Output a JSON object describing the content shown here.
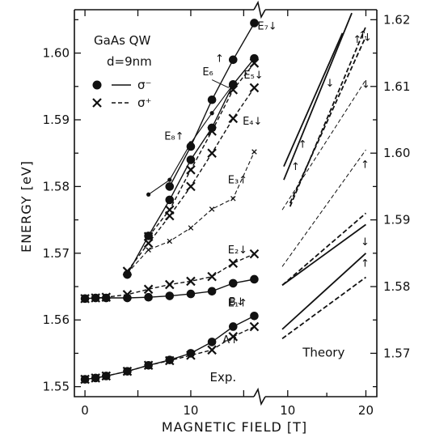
{
  "chart_data": {
    "type": "scatter",
    "ylabel": "ENERGY [eV]",
    "xlabel": "MAGNETIC FIELD [T]",
    "legend": {
      "title_line1": "GaAs QW",
      "title_line2": "d=9nm",
      "entries": [
        {
          "name": "σ⁻",
          "marker": "dot",
          "line": "solid"
        },
        {
          "name": "σ⁺",
          "marker": "cross",
          "line": "dashed"
        }
      ]
    },
    "exp_panel": {
      "label": "Exp.",
      "xlim": [
        -1,
        16.5
      ],
      "ylim": [
        1.5485,
        1.6065
      ],
      "xticks": [
        0,
        5,
        10,
        15
      ],
      "xtick_labels": [
        "0",
        "",
        "10",
        ""
      ],
      "yticks": [
        1.55,
        1.56,
        1.57,
        1.58,
        1.59,
        1.6
      ],
      "ytick_labels": [
        "1.55",
        "1.56",
        "1.57",
        "1.58",
        "1.59",
        "1.60"
      ],
      "series": [
        {
          "id": "A",
          "marker": "cross",
          "size": "large",
          "line": "dashed",
          "x": [
            0,
            1,
            2,
            4,
            6,
            8,
            10,
            12,
            14,
            16
          ],
          "y": [
            1.5511,
            1.5513,
            1.5516,
            1.5523,
            1.5532,
            1.5539,
            1.5547,
            1.5555,
            1.5575,
            1.559
          ]
        },
        {
          "id": "B",
          "marker": "dot",
          "size": "large",
          "line": "solid",
          "x": [
            0,
            1,
            2,
            4,
            6,
            8,
            10,
            12,
            14,
            16
          ],
          "y": [
            1.5511,
            1.5513,
            1.5516,
            1.5523,
            1.5532,
            1.554,
            1.555,
            1.5567,
            1.559,
            1.5606
          ]
        },
        {
          "id": "E1",
          "marker": "dot",
          "size": "large",
          "line": "solid",
          "x": [
            0,
            1,
            2,
            4,
            6,
            8,
            10,
            12,
            14,
            16
          ],
          "y": [
            1.5632,
            1.5633,
            1.5633,
            1.5633,
            1.5634,
            1.5636,
            1.5639,
            1.5643,
            1.5655,
            1.5661
          ]
        },
        {
          "id": "E2",
          "marker": "cross",
          "size": "large",
          "line": "dashed",
          "x": [
            0,
            1,
            2,
            4,
            6,
            8,
            10,
            12,
            14,
            16
          ],
          "y": [
            1.5632,
            1.5633,
            1.5634,
            1.5638,
            1.5646,
            1.5653,
            1.5658,
            1.5665,
            1.5685,
            1.5699
          ]
        },
        {
          "id": "E3",
          "marker": "cross",
          "size": "small",
          "line": "dashed",
          "x": [
            4,
            6,
            8,
            10,
            12,
            14,
            16
          ],
          "y": [
            1.567,
            1.5705,
            1.5718,
            1.5738,
            1.5766,
            1.5782,
            1.5852
          ]
        },
        {
          "id": "E4",
          "marker": "cross",
          "size": "large",
          "line": "dashed",
          "x": [
            4,
            6,
            8,
            10,
            12,
            14,
            16
          ],
          "y": [
            1.5673,
            1.5715,
            1.5756,
            1.58,
            1.585,
            1.5902,
            1.5948
          ]
        },
        {
          "id": "E5",
          "marker": "cross",
          "size": "large",
          "line": "dashed",
          "x": [
            6,
            8,
            10,
            12,
            14,
            16
          ],
          "y": [
            1.5725,
            1.5765,
            1.5825,
            1.5883,
            1.5945,
            1.5985
          ]
        },
        {
          "id": "E6",
          "marker": "dot",
          "size": "large",
          "line": "solid",
          "x": [
            4,
            6,
            8,
            10,
            12,
            14,
            16
          ],
          "y": [
            1.5668,
            1.5726,
            1.578,
            1.584,
            1.5888,
            1.5953,
            1.5992
          ]
        },
        {
          "id": "E7",
          "marker": "dot",
          "size": "large",
          "line": "solid",
          "x": [
            8,
            10,
            12,
            14,
            16
          ],
          "y": [
            1.58,
            1.586,
            1.593,
            1.599,
            1.6045
          ]
        },
        {
          "id": "E8",
          "marker": "dot",
          "size": "small",
          "line": "solid",
          "x": [
            6,
            8,
            10,
            12,
            14
          ],
          "y": [
            1.5788,
            1.581,
            1.5865,
            1.591,
            1.5953
          ]
        }
      ],
      "labels": [
        {
          "text": "E₇↓",
          "x": 16.3,
          "y": 1.6035
        },
        {
          "text": "E₆",
          "x": 11.1,
          "y": 1.5967
        },
        {
          "text": "↑",
          "x": 12.3,
          "y": 1.5987
        },
        {
          "text": "E₅↓",
          "x": 15.0,
          "y": 1.5962
        },
        {
          "text": "E₄↓",
          "x": 14.9,
          "y": 1.5893
        },
        {
          "text": "E₈↑",
          "x": 7.5,
          "y": 1.587
        },
        {
          "text": "E₃↑",
          "x": 13.5,
          "y": 1.5805
        },
        {
          "text": "E₂↓",
          "x": 13.5,
          "y": 1.57
        },
        {
          "text": "E₁↑",
          "x": 13.5,
          "y": 1.562
        },
        {
          "text": "B↓",
          "x": 13.6,
          "y": 1.5622
        },
        {
          "text": "A↑",
          "x": 13.0,
          "y": 1.5565
        }
      ]
    },
    "theory_panel": {
      "label": "Theory",
      "xlim": [
        6.4,
        21.4
      ],
      "ylim": [
        1.5635,
        1.6215
      ],
      "xticks": [
        10,
        20
      ],
      "xtick_labels": [
        "10",
        "20"
      ],
      "yticks": [
        1.57,
        1.58,
        1.59,
        1.6,
        1.61,
        1.62
      ],
      "ytick_labels": [
        "1.57",
        "1.58",
        "1.59",
        "1.60",
        "1.61",
        "1.62"
      ],
      "lines": [
        {
          "style": "solid",
          "x": [
            9.3,
            20.0
          ],
          "y": [
            1.5736,
            1.585
          ]
        },
        {
          "style": "dashed",
          "x": [
            9.3,
            20.0
          ],
          "y": [
            1.5722,
            1.5814
          ]
        },
        {
          "style": "solid",
          "x": [
            9.3,
            20.0
          ],
          "y": [
            1.5802,
            1.5893
          ]
        },
        {
          "style": "dashed",
          "x": [
            9.3,
            20.0
          ],
          "y": [
            1.5802,
            1.591
          ]
        },
        {
          "style": "thin-dashed",
          "x": [
            9.3,
            20.0
          ],
          "y": [
            1.583,
            1.6005
          ]
        },
        {
          "style": "thin-dashed",
          "x": [
            9.3,
            20.0
          ],
          "y": [
            1.5915,
            1.611
          ]
        },
        {
          "style": "solid",
          "x": [
            9.5,
            18.2
          ],
          "y": [
            1.596,
            1.621
          ]
        },
        {
          "style": "solid",
          "x": [
            9.5,
            17.0
          ],
          "y": [
            1.598,
            1.618
          ]
        },
        {
          "style": "dashed",
          "x": [
            10.3,
            20.0
          ],
          "y": [
            1.592,
            1.619
          ]
        },
        {
          "style": "dashed",
          "x": [
            10.3,
            20.0
          ],
          "y": [
            1.5925,
            1.6175
          ]
        }
      ],
      "arrows": [
        {
          "text": "↑",
          "x": 19.9,
          "y": 1.583
        },
        {
          "text": "↓",
          "x": 19.9,
          "y": 1.5862
        },
        {
          "text": "↑",
          "x": 19.9,
          "y": 1.5978
        },
        {
          "text": "↓",
          "x": 20.0,
          "y": 1.6098
        },
        {
          "text": "↑",
          "x": 18.9,
          "y": 1.6165
        },
        {
          "text": "↑",
          "x": 19.6,
          "y": 1.6172
        },
        {
          "text": "↓",
          "x": 20.2,
          "y": 1.6168
        },
        {
          "text": "↓",
          "x": 15.4,
          "y": 1.61
        },
        {
          "text": "↑",
          "x": 11.0,
          "y": 1.5975
        },
        {
          "text": "↑",
          "x": 11.9,
          "y": 1.6008
        }
      ]
    }
  }
}
